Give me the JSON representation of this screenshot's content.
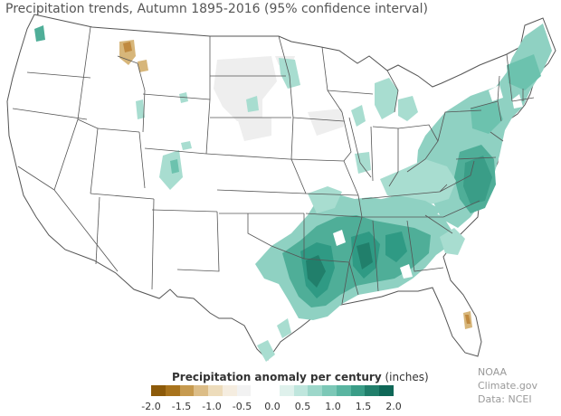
{
  "title": "Precipitation trends, Autumn 1895-2016 (95% confidence interval)",
  "legend": {
    "title": "Precipitation anomaly per century",
    "unit": "(inches)",
    "ticks": [
      "-2.0",
      "-1.5",
      "-1.0",
      "-0.5",
      "0.0",
      "0.5",
      "1.0",
      "1.5",
      "2.0"
    ],
    "colors": [
      "#8c5a0a",
      "#a8731c",
      "#c69a4f",
      "#dcbd87",
      "#eddcbb",
      "#f5ede0",
      "#f2f2f2",
      "#ffffff",
      "#ffffff",
      "#dff1ec",
      "#bfe6dd",
      "#9dd7ca",
      "#7cc8b7",
      "#5ab5a1",
      "#3a9d87",
      "#217f6b",
      "#0f6757"
    ]
  },
  "credit": {
    "line1": "NOAA Climate.gov",
    "line2": "Data: NCEI"
  },
  "colors": {
    "wet_light": "#a8ddd0",
    "wet_mid": "#6cc2ae",
    "wet_dark": "#2f9a84",
    "dry_light": "#e0c9a0",
    "dry_mid": "#c08a40",
    "neutral": "#eeeeee",
    "border": "#555555"
  }
}
